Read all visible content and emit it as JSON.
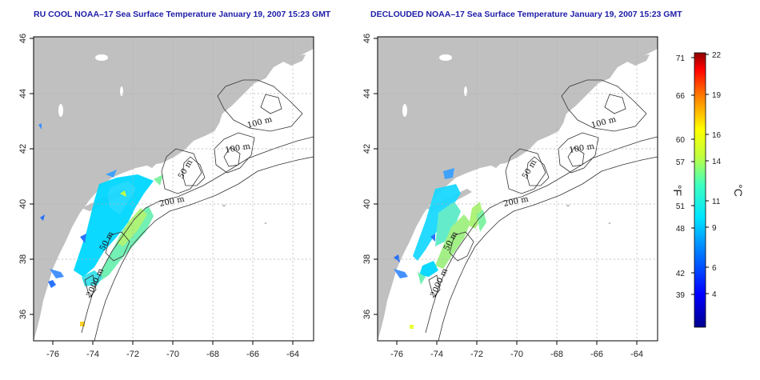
{
  "titles": {
    "left": "RU COOL NOAA–17 Sea Surface Temperature January 19, 2007 15:23 GMT",
    "right": "DECLOUDED NOAA–17 Sea Surface Temperature January 19, 2007 15:23 GMT"
  },
  "axes": {
    "lon_ticks": [
      "-76",
      "-74",
      "-72",
      "-70",
      "-68",
      "-66",
      "-64"
    ],
    "lat_ticks": [
      "36",
      "38",
      "40",
      "42",
      "44",
      "46"
    ]
  },
  "contour_labels": {
    "left": [
      "100 m",
      "100 m",
      "50 m",
      "200 m",
      "50 m",
      "2000 m"
    ],
    "right": [
      "100 m",
      "100 m",
      "50 m",
      "200 m",
      "50 m",
      "2000 m"
    ]
  },
  "colorbar": {
    "fahrenheit_unit": "°F",
    "celsius_unit": "°C",
    "fahrenheit_ticks": [
      "71",
      "66",
      "60",
      "57",
      "51",
      "48",
      "42",
      "39"
    ],
    "celsius_ticks": [
      "22",
      "19",
      "16",
      "14",
      "11",
      "9",
      "6",
      "4"
    ]
  },
  "colors": {
    "land": "#c0c0c0",
    "ocean": "#ffffff",
    "title": "#1c1ca8",
    "contour": "#333333",
    "grid": "#b0b0b0"
  }
}
